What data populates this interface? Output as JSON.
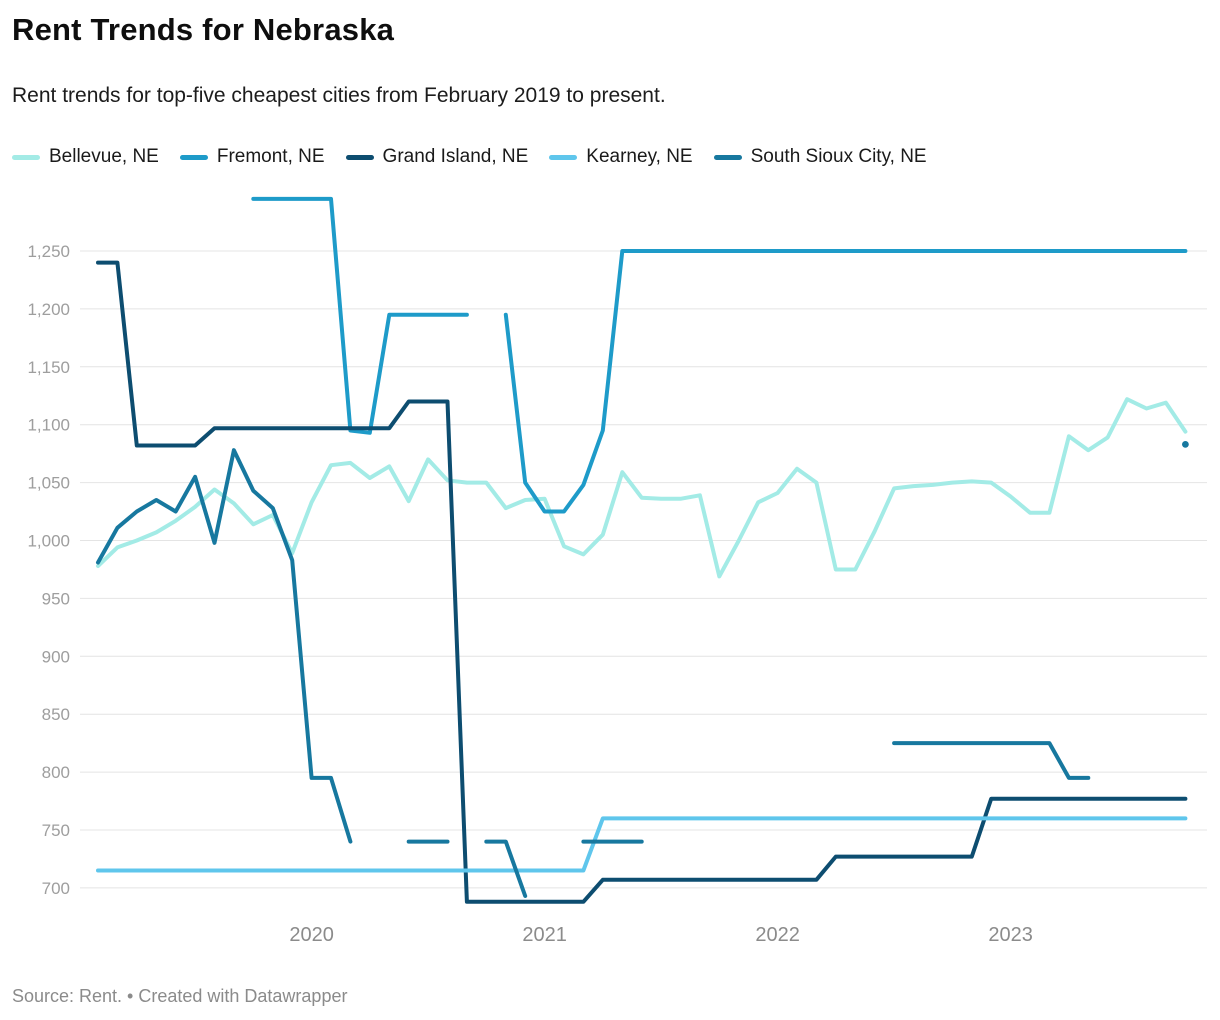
{
  "header": {
    "title": "Rent Trends for Nebraska",
    "subtitle": "Rent trends for top-five cheapest cities from February 2019 to present."
  },
  "footer": {
    "text": "Source: Rent. • Created with Datawrapper"
  },
  "colors": {
    "bellevue": "#A3EBE6",
    "fremont": "#1E9BC9",
    "grand_island": "#0D4D70",
    "kearney": "#5FC6EC",
    "south_sioux_city": "#17789F",
    "grid": "#e4e4e4",
    "y_tick_text": "#9e9e9e",
    "x_tick_text": "#8b8b8b"
  },
  "chart_data": {
    "type": "line",
    "title": "Rent Trends for Nebraska",
    "xlabel": "",
    "ylabel": "",
    "grid": "horizontal",
    "legend_position": "top",
    "ylim": [
      700,
      1250
    ],
    "y_ticks": [
      1250,
      1200,
      1150,
      1100,
      1050,
      1000,
      950,
      900,
      850,
      800,
      750,
      700
    ],
    "y_tick_labels": [
      "1,250",
      "1,200",
      "1,150",
      "1,100",
      "1,050",
      "1,000",
      "950",
      "900",
      "850",
      "800",
      "750",
      "700"
    ],
    "x_tick_labels": [
      "2020",
      "2021",
      "2022",
      "2023"
    ],
    "x": [
      "2019-02",
      "2019-03",
      "2019-04",
      "2019-05",
      "2019-06",
      "2019-07",
      "2019-08",
      "2019-09",
      "2019-10",
      "2019-11",
      "2019-12",
      "2020-01",
      "2020-02",
      "2020-03",
      "2020-04",
      "2020-05",
      "2020-06",
      "2020-07",
      "2020-08",
      "2020-09",
      "2020-10",
      "2020-11",
      "2020-12",
      "2021-01",
      "2021-02",
      "2021-03",
      "2021-04",
      "2021-05",
      "2021-06",
      "2021-07",
      "2021-08",
      "2021-09",
      "2021-10",
      "2021-11",
      "2021-12",
      "2022-01",
      "2022-02",
      "2022-03",
      "2022-04",
      "2022-05",
      "2022-06",
      "2022-07",
      "2022-08",
      "2022-09",
      "2022-10",
      "2022-11",
      "2022-12",
      "2023-01",
      "2023-02",
      "2023-03",
      "2023-04",
      "2023-05",
      "2023-06",
      "2023-07",
      "2023-08",
      "2023-09",
      "2023-10"
    ],
    "series": [
      {
        "name": "Bellevue, NE",
        "color": "#A3EBE6",
        "values": [
          978,
          994,
          1000,
          1007,
          1017,
          1029,
          1044,
          1032,
          1014,
          1022,
          989,
          1033,
          1065,
          1067,
          1054,
          1064,
          1034,
          1070,
          1052,
          1050,
          1050,
          1028,
          1035,
          1036,
          995,
          988,
          1005,
          1059,
          1037,
          1036,
          1036,
          1039,
          969,
          1000,
          1033,
          1041,
          1062,
          1050,
          975,
          975,
          1008,
          1045,
          1047,
          1048,
          1050,
          1051,
          1050,
          1038,
          1024,
          1024,
          1090,
          1078,
          1089,
          1122,
          1114,
          1119,
          1094
        ]
      },
      {
        "name": "Fremont, NE",
        "color": "#1E9BC9",
        "values": [
          null,
          null,
          null,
          null,
          null,
          null,
          null,
          null,
          1295,
          1295,
          1295,
          1295,
          1295,
          1095,
          1093,
          1195,
          1195,
          1195,
          1195,
          1195,
          null,
          1195,
          1050,
          1025,
          1025,
          1048,
          1095,
          1250,
          1250,
          1250,
          1250,
          1250,
          1250,
          1250,
          1250,
          1250,
          1250,
          1250,
          1250,
          1250,
          1250,
          1250,
          1250,
          1250,
          1250,
          1250,
          1250,
          1250,
          1250,
          1250,
          1250,
          1250,
          1250,
          1250,
          1250,
          1250,
          1250
        ]
      },
      {
        "name": "Grand Island, NE",
        "color": "#0D4D70",
        "values": [
          1240,
          1240,
          1082,
          1082,
          1082,
          1082,
          1097,
          1097,
          1097,
          1097,
          1097,
          1097,
          1097,
          1097,
          1097,
          1097,
          1120,
          1120,
          1120,
          688,
          688,
          688,
          688,
          688,
          688,
          688,
          707,
          707,
          707,
          707,
          707,
          707,
          707,
          707,
          707,
          707,
          707,
          707,
          727,
          727,
          727,
          727,
          727,
          727,
          727,
          727,
          777,
          777,
          777,
          777,
          777,
          777,
          777,
          777,
          777,
          777,
          777
        ]
      },
      {
        "name": "Kearney, NE",
        "color": "#5FC6EC",
        "values": [
          715,
          715,
          715,
          715,
          715,
          715,
          715,
          715,
          715,
          715,
          715,
          715,
          715,
          715,
          715,
          715,
          715,
          715,
          715,
          715,
          715,
          715,
          715,
          715,
          715,
          715,
          760,
          760,
          760,
          760,
          760,
          760,
          760,
          760,
          760,
          760,
          760,
          760,
          760,
          760,
          760,
          760,
          760,
          760,
          760,
          760,
          760,
          760,
          760,
          760,
          760,
          760,
          760,
          760,
          760,
          760,
          760
        ]
      },
      {
        "name": "South Sioux City, NE",
        "color": "#17789F",
        "values": [
          981,
          1011,
          1025,
          1035,
          1025,
          1055,
          998,
          1078,
          1043,
          1028,
          983,
          795,
          795,
          740,
          null,
          null,
          740,
          740,
          740,
          null,
          740,
          740,
          693,
          null,
          null,
          740,
          740,
          740,
          740,
          null,
          null,
          null,
          null,
          null,
          null,
          null,
          null,
          null,
          null,
          null,
          null,
          825,
          825,
          825,
          825,
          825,
          825,
          825,
          825,
          825,
          795,
          795,
          null,
          null,
          null,
          null,
          1083
        ]
      }
    ]
  }
}
